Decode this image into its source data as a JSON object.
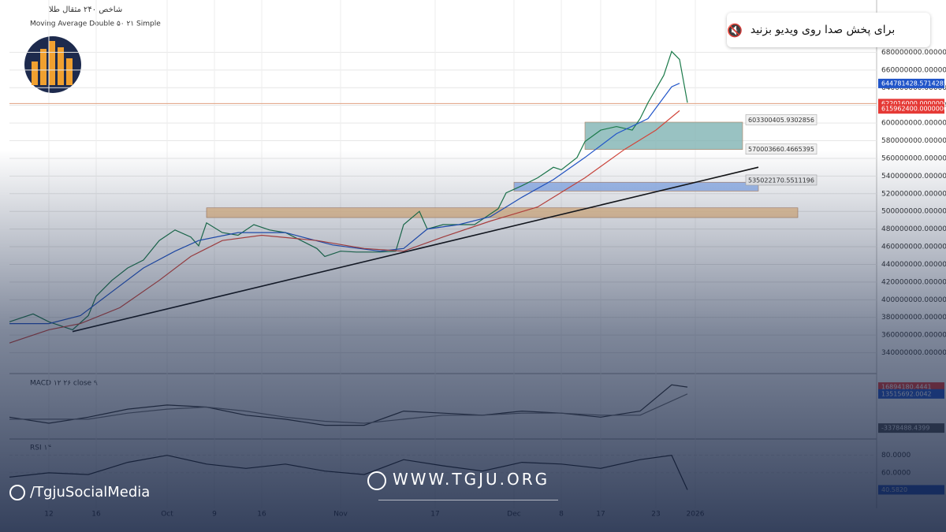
{
  "header": {
    "symbol": "شاخص ۲۴۰ مثقال طلا",
    "indicator": "Moving Average Double ۵۰ ۲۱ Simple"
  },
  "notice": "برای پخش صدا روی ویدیو بزنید",
  "watermark": {
    "site": "WWW.TGJU.ORG",
    "social": "/TgjuSocialMedia"
  },
  "chart_data": [
    {
      "type": "line",
      "xlim": [
        0,
        110
      ],
      "ylim": [
        320000000,
        700000000
      ],
      "yticks": [
        {
          "value": 340000000,
          "label": "340000000.0000000"
        },
        {
          "value": 360000000,
          "label": "360000000.0000000"
        },
        {
          "value": 380000000,
          "label": "380000000.0000000"
        },
        {
          "value": 400000000,
          "label": "400000000.0000000"
        },
        {
          "value": 420000000,
          "label": "420000000.0000000"
        },
        {
          "value": 440000000,
          "label": "440000000.0000000"
        },
        {
          "value": 460000000,
          "label": "460000000.0000000"
        },
        {
          "value": 480000000,
          "label": "480000000.0000000"
        },
        {
          "value": 500000000,
          "label": "500000000.0000000"
        },
        {
          "value": 520000000,
          "label": "520000000.0000000"
        },
        {
          "value": 540000000,
          "label": "540000000.0000000"
        },
        {
          "value": 560000000,
          "label": "560000000.0000000"
        },
        {
          "value": 580000000,
          "label": "580000000.0000000"
        },
        {
          "value": 600000000,
          "label": "600000000.0000000"
        },
        {
          "value": 620000000,
          "label": "620000000.0000000"
        },
        {
          "value": 640000000,
          "label": "640000000.0000000"
        },
        {
          "value": 660000000,
          "label": "660000000.0000000"
        },
        {
          "value": 680000000,
          "label": "680000000.0000000"
        }
      ],
      "xticks": [
        {
          "value": 5,
          "label": "12"
        },
        {
          "value": 11,
          "label": "16"
        },
        {
          "value": 20,
          "label": "Oct"
        },
        {
          "value": 26,
          "label": "9"
        },
        {
          "value": 32,
          "label": "16"
        },
        {
          "value": 42,
          "label": "Nov"
        },
        {
          "value": 54,
          "label": "17"
        },
        {
          "value": 64,
          "label": "Dec"
        },
        {
          "value": 70,
          "label": "8"
        },
        {
          "value": 75,
          "label": "17"
        },
        {
          "value": 82,
          "label": "23"
        },
        {
          "value": 87,
          "label": "2026"
        }
      ],
      "grid": true,
      "series": [
        {
          "color": "#1b7a4a",
          "x": [
            0,
            3,
            5,
            8,
            10,
            11,
            13,
            15,
            17,
            19,
            21,
            23,
            24,
            25,
            27,
            29,
            31,
            33,
            35,
            37,
            39,
            40,
            42,
            44,
            47,
            49,
            50,
            52,
            53,
            55,
            57,
            59,
            60,
            62,
            63,
            65,
            67,
            69,
            70,
            72,
            73,
            75,
            77,
            79,
            80,
            81,
            83,
            84,
            85,
            86
          ],
          "values": [
            375000000,
            384000000,
            375000000,
            366000000,
            382000000,
            404000000,
            422000000,
            436000000,
            445000000,
            467000000,
            479000000,
            471000000,
            461000000,
            487000000,
            476000000,
            473000000,
            485000000,
            479000000,
            476000000,
            467000000,
            458000000,
            449000000,
            455000000,
            454000000,
            454000000,
            455000000,
            485000000,
            500000000,
            480000000,
            485000000,
            485000000,
            485000000,
            491000000,
            503000000,
            521000000,
            529000000,
            538000000,
            550000000,
            547000000,
            561000000,
            579000000,
            592000000,
            596000000,
            592000000,
            605000000,
            623000000,
            654000000,
            681000000,
            672000000,
            623000000
          ]
        },
        {
          "color": "#2155c9",
          "x": [
            0,
            5,
            9,
            13,
            17,
            21,
            24,
            29,
            35,
            41,
            47,
            50,
            53,
            57,
            61,
            65,
            69,
            73,
            77,
            81,
            84,
            85
          ],
          "values": [
            373000000,
            373000000,
            382000000,
            409000000,
            436000000,
            455000000,
            467000000,
            476000000,
            476000000,
            462000000,
            455000000,
            458000000,
            480000000,
            485000000,
            494000000,
            516000000,
            536000000,
            561000000,
            588000000,
            605000000,
            641000000,
            645000000
          ]
        },
        {
          "color": "#d2453a",
          "x": [
            0,
            5,
            9,
            14,
            19,
            23,
            27,
            32,
            39,
            45,
            50,
            55,
            61,
            67,
            73,
            78,
            82,
            85
          ],
          "values": [
            351000000,
            366000000,
            373000000,
            391000000,
            422000000,
            449000000,
            467000000,
            473000000,
            467000000,
            458000000,
            455000000,
            471000000,
            489000000,
            505000000,
            538000000,
            570000000,
            592000000,
            614000000
          ]
        },
        {
          "color": "#111111",
          "x": [
            8,
            95
          ],
          "values": [
            364000000,
            550000000
          ]
        }
      ],
      "zones": [
        {
          "xmin": 25,
          "xmax": 100,
          "ymin": 493000000,
          "ymax": 504000000,
          "color": "#f2c48d"
        },
        {
          "xmin": 64,
          "xmax": 95,
          "ymin": 523000000,
          "ymax": 533000000,
          "color": "#8fb2ef"
        },
        {
          "xmin": 73,
          "xmax": 93,
          "ymin": 570000000,
          "ymax": 601000000,
          "color": "#7fb3b3"
        }
      ],
      "hlines": [
        {
          "value": 622016000,
          "color": "#e0a080"
        }
      ],
      "annotations": [
        {
          "value": 603300405.9302856,
          "label": "603300405.9302856"
        },
        {
          "value": 570003660.4665395,
          "label": "570003660.4665395"
        },
        {
          "value": 535022170.5511196,
          "label": "535022170.5511196"
        }
      ],
      "price_labels": [
        {
          "value": 644781428.5714285,
          "label": "644781428.5714285",
          "color": "#2155c9"
        },
        {
          "value": 622016000,
          "label": "622016000.0000000",
          "color": "#e53935"
        },
        {
          "value": 615962400,
          "label": "615962400.0000000",
          "color": "#e53935"
        }
      ]
    },
    {
      "type": "line",
      "title": "MACD ۱۲ ۲۶ close ۹",
      "ylim": [
        -8000000,
        22000000
      ],
      "xlim": [
        0,
        110
      ],
      "series": [
        {
          "color": "#333333",
          "x": [
            0,
            5,
            10,
            15,
            20,
            25,
            30,
            35,
            40,
            45,
            50,
            55,
            60,
            65,
            70,
            75,
            80,
            84,
            86
          ],
          "values": [
            2000000,
            -1000000,
            2000000,
            6000000,
            8000000,
            7000000,
            3000000,
            1000000,
            -2000000,
            -2000000,
            5000000,
            4000000,
            3000000,
            5000000,
            4000000,
            2000000,
            5000000,
            18000000,
            16894180.4441
          ]
        },
        {
          "color": "#777777",
          "x": [
            0,
            5,
            10,
            15,
            20,
            25,
            30,
            35,
            40,
            45,
            50,
            55,
            60,
            65,
            70,
            75,
            80,
            84,
            86
          ],
          "values": [
            1000000,
            1000000,
            1000000,
            4000000,
            6000000,
            7000000,
            5000000,
            2000000,
            0,
            -1000000,
            1000000,
            3000000,
            3000000,
            4000000,
            4000000,
            3000000,
            3000000,
            10000000,
            13515692.0042
          ]
        }
      ],
      "price_labels": [
        {
          "value": 16894180.4441,
          "label": "16894180.4441",
          "color": "#e53935"
        },
        {
          "value": 13515692.0042,
          "label": "13515692.0042",
          "color": "#2155c9"
        },
        {
          "value": -3378488.4399,
          "label": "-3378488.4399",
          "color": "#555555"
        }
      ]
    },
    {
      "type": "line",
      "title": "RSI ۱۴",
      "ylim": [
        23,
        95
      ],
      "xlim": [
        0,
        110
      ],
      "yticks": [
        {
          "value": 80,
          "label": "80.0000"
        },
        {
          "value": 60,
          "label": "60.0000"
        }
      ],
      "series": [
        {
          "color": "#222222",
          "x": [
            0,
            5,
            10,
            15,
            20,
            25,
            30,
            35,
            40,
            45,
            50,
            55,
            60,
            65,
            70,
            75,
            80,
            84,
            86
          ],
          "values": [
            55,
            60,
            58,
            72,
            80,
            70,
            65,
            70,
            62,
            58,
            75,
            68,
            62,
            72,
            70,
            65,
            75,
            80,
            40.582
          ]
        }
      ],
      "price_labels": [
        {
          "value": 40.582,
          "label": "40.5820",
          "color": "#2155c9"
        }
      ]
    }
  ]
}
